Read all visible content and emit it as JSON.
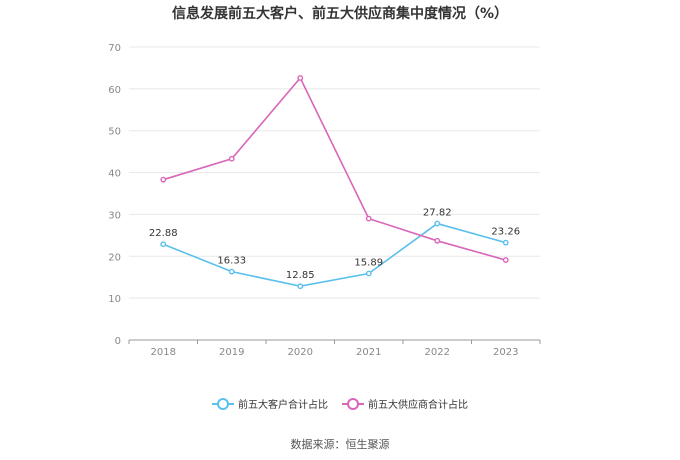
{
  "title": "信息发展前五大客户、前五大供应商集中度情况（%）",
  "source": "数据来源：恒生聚源",
  "chart_data": {
    "type": "line",
    "categories": [
      "2018",
      "2019",
      "2020",
      "2021",
      "2022",
      "2023"
    ],
    "ylim": [
      0,
      70
    ],
    "yticks": [
      0,
      10,
      20,
      30,
      40,
      50,
      60,
      70
    ],
    "grid": true,
    "legend_position": "bottom-center",
    "series": [
      {
        "name": "前五大客户合计占比",
        "color": "#5bc0eb",
        "values": [
          22.88,
          16.33,
          12.85,
          15.89,
          27.82,
          23.26
        ],
        "labels": [
          "22.88",
          "16.33",
          "12.85",
          "15.89",
          "27.82",
          "23.26"
        ]
      },
      {
        "name": "前五大供应商合计占比",
        "color": "#d966b8",
        "values": [
          38.3,
          43.3,
          62.6,
          29.0,
          23.7,
          19.1
        ]
      }
    ]
  }
}
